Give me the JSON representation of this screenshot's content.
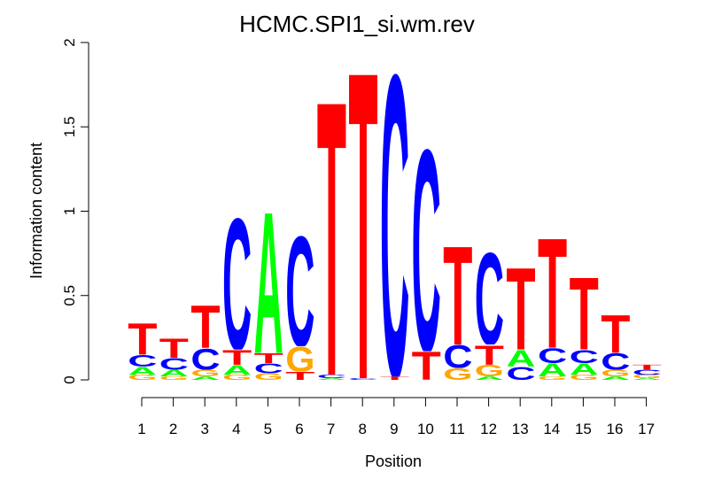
{
  "chart_data": {
    "type": "sequence-logo",
    "title": "HCMC.SPI1_si.wm.rev",
    "xlabel": "Position",
    "ylabel": "Information content",
    "ylim": [
      0,
      2
    ],
    "yticks": [
      0,
      0.5,
      1,
      1.5,
      2
    ],
    "ytick_labels": [
      "0",
      "0.5",
      "1",
      "1.5",
      "2"
    ],
    "positions": [
      "1",
      "2",
      "3",
      "4",
      "5",
      "6",
      "7",
      "8",
      "9",
      "10",
      "11",
      "12",
      "13",
      "14",
      "15",
      "16",
      "17"
    ],
    "colors": {
      "A": "#00ff00",
      "C": "#0000ff",
      "G": "#ffa500",
      "T": "#ff0000"
    },
    "stacks": [
      [
        {
          "letter": "G",
          "height": 0.03
        },
        {
          "letter": "A",
          "height": 0.05
        },
        {
          "letter": "C",
          "height": 0.07
        },
        {
          "letter": "T",
          "height": 0.19
        }
      ],
      [
        {
          "letter": "G",
          "height": 0.02
        },
        {
          "letter": "A",
          "height": 0.04
        },
        {
          "letter": "C",
          "height": 0.07
        },
        {
          "letter": "T",
          "height": 0.12
        }
      ],
      [
        {
          "letter": "A",
          "height": 0.02
        },
        {
          "letter": "G",
          "height": 0.04
        },
        {
          "letter": "C",
          "height": 0.13
        },
        {
          "letter": "T",
          "height": 0.26
        }
      ],
      [
        {
          "letter": "G",
          "height": 0.03
        },
        {
          "letter": "A",
          "height": 0.06
        },
        {
          "letter": "T",
          "height": 0.09
        },
        {
          "letter": "C",
          "height": 0.8
        }
      ],
      [
        {
          "letter": "G",
          "height": 0.04
        },
        {
          "letter": "C",
          "height": 0.06
        },
        {
          "letter": "T",
          "height": 0.06
        },
        {
          "letter": "A",
          "height": 0.86
        }
      ],
      [
        {
          "letter": "T",
          "height": 0.05
        },
        {
          "letter": "G",
          "height": 0.15
        },
        {
          "letter": "C",
          "height": 0.67
        }
      ],
      [
        {
          "letter": "A",
          "height": 0.01
        },
        {
          "letter": "C",
          "height": 0.02
        },
        {
          "letter": "T",
          "height": 1.67
        }
      ],
      [
        {
          "letter": "C",
          "height": 0.01
        },
        {
          "letter": "T",
          "height": 1.87
        }
      ],
      [
        {
          "letter": "T",
          "height": 0.02
        },
        {
          "letter": "C",
          "height": 1.84
        }
      ],
      [
        {
          "letter": "T",
          "height": 0.17
        },
        {
          "letter": "C",
          "height": 1.23
        }
      ],
      [
        {
          "letter": "G",
          "height": 0.07
        },
        {
          "letter": "C",
          "height": 0.14
        },
        {
          "letter": "T",
          "height": 0.6
        }
      ],
      [
        {
          "letter": "A",
          "height": 0.02
        },
        {
          "letter": "G",
          "height": 0.07
        },
        {
          "letter": "T",
          "height": 0.12
        },
        {
          "letter": "C",
          "height": 0.56
        }
      ],
      [
        {
          "letter": "C",
          "height": 0.08
        },
        {
          "letter": "A",
          "height": 0.1
        },
        {
          "letter": "T",
          "height": 0.5
        }
      ],
      [
        {
          "letter": "G",
          "height": 0.02
        },
        {
          "letter": "A",
          "height": 0.08
        },
        {
          "letter": "C",
          "height": 0.09
        },
        {
          "letter": "T",
          "height": 0.67
        }
      ],
      [
        {
          "letter": "G",
          "height": 0.03
        },
        {
          "letter": "A",
          "height": 0.07
        },
        {
          "letter": "C",
          "height": 0.08
        },
        {
          "letter": "T",
          "height": 0.44
        }
      ],
      [
        {
          "letter": "A",
          "height": 0.02
        },
        {
          "letter": "G",
          "height": 0.04
        },
        {
          "letter": "C",
          "height": 0.1
        },
        {
          "letter": "T",
          "height": 0.23
        }
      ],
      [
        {
          "letter": "A",
          "height": 0.01
        },
        {
          "letter": "G",
          "height": 0.02
        },
        {
          "letter": "C",
          "height": 0.03
        },
        {
          "letter": "T",
          "height": 0.03
        }
      ]
    ]
  }
}
